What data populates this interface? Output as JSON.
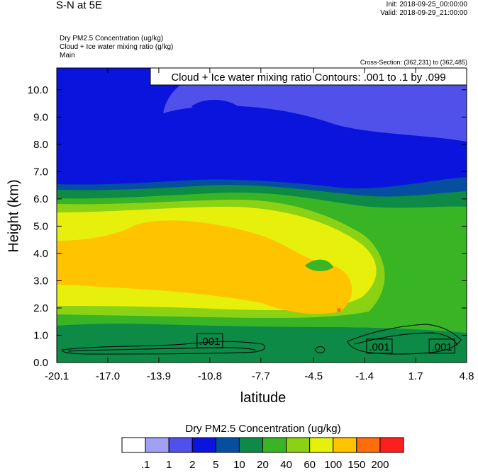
{
  "header": {
    "title": "S-N at 5E",
    "init": "Init: 2018-09-25_00:00:00",
    "valid": "Valid: 2018-09-29_21:00:00",
    "desc_lines": [
      "Dry PM2.5 Concentration   (ug/kg)",
      "Cloud + Ice water mixing ratio   (g/kg)",
      "Main"
    ],
    "cross_section": "Cross-Section: (362,231) to (362,485)"
  },
  "chart_data": {
    "type": "heatmap",
    "title": "S-N at 5E",
    "overlay_label": "Cloud + Ice water mixing ratio Contours: .001 to .1 by .099",
    "xlabel": "latitude",
    "ylabel": "Height (km)",
    "x_ticks": [
      "-20.1",
      "-17.0",
      "-13.9",
      "-10.8",
      "-7.7",
      "-4.5",
      "-1.4",
      "1.7",
      "4.8"
    ],
    "y_ticks": [
      "0.0",
      "1.0",
      "2.0",
      "3.0",
      "4.0",
      "5.0",
      "6.0",
      "7.0",
      "8.0",
      "9.0",
      "10.0"
    ],
    "xlim": [
      -20.1,
      4.8
    ],
    "ylim": [
      0,
      10.8
    ],
    "contour_labels": [
      {
        "text": ".001",
        "lat": -10.8,
        "height": 0.8
      },
      {
        "text": ".001",
        "lat": -0.5,
        "height": 0.6
      },
      {
        "text": ".001",
        "lat": 3.3,
        "height": 0.6
      }
    ],
    "colorbar": {
      "title": "Dry PM2.5 Concentration  (ug/kg)",
      "labels": [
        ".1",
        "1",
        "2",
        "5",
        "10",
        "20",
        "40",
        "60",
        "100",
        "150",
        "200"
      ],
      "colors": [
        "#ffffff",
        "#a0a0f4",
        "#5050ea",
        "#0a14dc",
        "#064ea0",
        "#0c8a46",
        "#38b424",
        "#8cd214",
        "#e6f00a",
        "#ffc300",
        "#ff6e0a",
        "#ff1e1e"
      ]
    }
  }
}
